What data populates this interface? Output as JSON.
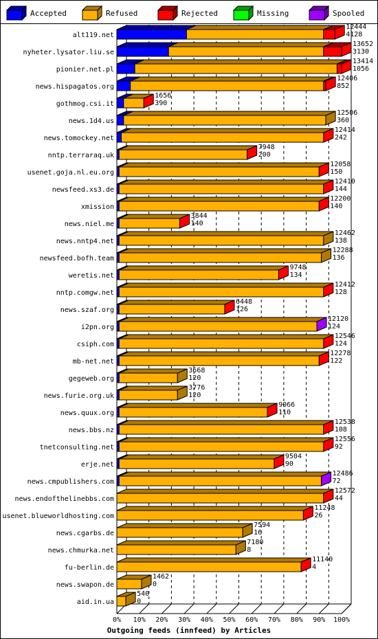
{
  "legend": {
    "placement": "top",
    "items": [
      {
        "name": "Accepted",
        "color": "#0000ff",
        "shade": "#0000a0"
      },
      {
        "name": "Refused",
        "color": "#ffb000",
        "shade": "#b07a00"
      },
      {
        "name": "Rejected",
        "color": "#ff0000",
        "shade": "#a00000"
      },
      {
        "name": "Missing",
        "color": "#00ff00",
        "shade": "#00a000"
      },
      {
        "name": "Spooled",
        "color": "#a000ff",
        "shade": "#6a00a8"
      }
    ]
  },
  "chart_data": {
    "type": "bar",
    "orientation": "horizontal",
    "stacked": true,
    "title": "Outgoing feeds (innfeed) by Articles",
    "xlim": [
      0,
      100
    ],
    "x_unit": "%",
    "x_ticks": [
      "0%",
      "10%",
      "20%",
      "30%",
      "40%",
      "50%",
      "60%",
      "70%",
      "80%",
      "90%",
      "100%"
    ],
    "grid": true,
    "series_order": [
      "Accepted",
      "Refused",
      "Rejected",
      "Missing",
      "Spooled"
    ],
    "categories": [
      {
        "name": "alt119.net",
        "total": "12444",
        "accepted": "4128",
        "pct": [
          31,
          61,
          5,
          0,
          0
        ]
      },
      {
        "name": "nyheter.lysator.liu.se",
        "total": "13652",
        "accepted": "3130",
        "pct": [
          23,
          69,
          8,
          0,
          0
        ]
      },
      {
        "name": "pionier.net.pl",
        "total": "13414",
        "accepted": "1056",
        "pct": [
          8,
          90,
          2,
          0,
          0
        ]
      },
      {
        "name": "news.hispagatos.org",
        "total": "12406",
        "accepted": "852",
        "pct": [
          6,
          86,
          1,
          0,
          0
        ]
      },
      {
        "name": "gothmog.csi.it",
        "total": "1656",
        "accepted": "390",
        "pct": [
          3,
          9,
          0,
          0,
          0
        ]
      },
      {
        "name": "news.1d4.us",
        "total": "12506",
        "accepted": "360",
        "pct": [
          3,
          90,
          0,
          0,
          0
        ]
      },
      {
        "name": "news.tomockey.net",
        "total": "12414",
        "accepted": "242",
        "pct": [
          2,
          90,
          0,
          0,
          0
        ]
      },
      {
        "name": "nntp.terraraq.uk",
        "total": "7948",
        "accepted": "200",
        "pct": [
          1,
          57,
          0,
          0,
          0
        ]
      },
      {
        "name": "usenet.goja.nl.eu.org",
        "total": "12058",
        "accepted": "150",
        "pct": [
          1,
          89,
          0,
          0,
          0
        ]
      },
      {
        "name": "newsfeed.xs3.de",
        "total": "12410",
        "accepted": "144",
        "pct": [
          1,
          91,
          0,
          0,
          0
        ]
      },
      {
        "name": "xmission",
        "total": "12200",
        "accepted": "140",
        "pct": [
          1,
          89,
          0,
          0,
          0
        ]
      },
      {
        "name": "news.niel.me",
        "total": "3844",
        "accepted": "140",
        "pct": [
          1,
          27,
          0,
          0,
          0
        ]
      },
      {
        "name": "news.nntp4.net",
        "total": "12462",
        "accepted": "138",
        "pct": [
          1,
          91,
          0,
          0,
          0
        ]
      },
      {
        "name": "newsfeed.bofh.team",
        "total": "12288",
        "accepted": "136",
        "pct": [
          1,
          90,
          0,
          0,
          0
        ]
      },
      {
        "name": "weretis.net",
        "total": "9748",
        "accepted": "134",
        "pct": [
          1,
          71,
          0,
          0,
          0
        ]
      },
      {
        "name": "nntp.comgw.net",
        "total": "12412",
        "accepted": "128",
        "pct": [
          1,
          91,
          0,
          0,
          0
        ]
      },
      {
        "name": "news.szaf.org",
        "total": "6448",
        "accepted": "126",
        "pct": [
          1,
          47,
          0,
          0,
          0
        ]
      },
      {
        "name": "i2pn.org",
        "total": "12120",
        "accepted": "124",
        "pct": [
          1,
          88,
          0,
          0,
          0
        ]
      },
      {
        "name": "csiph.com",
        "total": "12546",
        "accepted": "124",
        "pct": [
          1,
          91,
          0,
          0,
          0
        ]
      },
      {
        "name": "mb-net.net",
        "total": "12278",
        "accepted": "122",
        "pct": [
          1,
          89,
          0,
          0,
          0
        ]
      },
      {
        "name": "gegeweb.org",
        "total": "3668",
        "accepted": "120",
        "pct": [
          1,
          26,
          0,
          0,
          0
        ]
      },
      {
        "name": "news.furie.org.uk",
        "total": "3776",
        "accepted": "120",
        "pct": [
          1,
          26,
          0,
          0,
          0
        ]
      },
      {
        "name": "news.quux.org",
        "total": "9066",
        "accepted": "110",
        "pct": [
          1,
          66,
          0,
          0,
          0
        ]
      },
      {
        "name": "news.bbs.nz",
        "total": "12538",
        "accepted": "108",
        "pct": [
          1,
          91,
          0,
          0,
          0
        ]
      },
      {
        "name": "tnetconsulting.net",
        "total": "12556",
        "accepted": "92",
        "pct": [
          1,
          91,
          0,
          0,
          0
        ]
      },
      {
        "name": "erje.net",
        "total": "9504",
        "accepted": "90",
        "pct": [
          1,
          69,
          0,
          0,
          0
        ]
      },
      {
        "name": "news.cmpublishers.com",
        "total": "12486",
        "accepted": "72",
        "pct": [
          1,
          90,
          0,
          0,
          0
        ]
      },
      {
        "name": "news.endofthelinebbs.com",
        "total": "12572",
        "accepted": "44",
        "pct": [
          0,
          92,
          0,
          0,
          0
        ]
      },
      {
        "name": "usenet.blueworldhosting.com",
        "total": "11248",
        "accepted": "26",
        "pct": [
          0,
          83,
          0,
          0,
          0
        ]
      },
      {
        "name": "news.cgarbs.de",
        "total": "7594",
        "accepted": "16",
        "pct": [
          0,
          56,
          0,
          0,
          0
        ]
      },
      {
        "name": "news.chmurka.net",
        "total": "7180",
        "accepted": "8",
        "pct": [
          0,
          53,
          0,
          0,
          0
        ]
      },
      {
        "name": "fu-berlin.de",
        "total": "11140",
        "accepted": "4",
        "pct": [
          0,
          82,
          0,
          0,
          0
        ]
      },
      {
        "name": "news.swapon.de",
        "total": "1462",
        "accepted": "0",
        "pct": [
          0,
          11,
          0,
          0,
          0
        ]
      },
      {
        "name": "aid.in.ua",
        "total": "540",
        "accepted": "0",
        "pct": [
          0,
          4,
          0,
          0,
          0
        ]
      }
    ],
    "cap_series": [
      "Rejected",
      "Rejected",
      "Rejected",
      "Rejected",
      "Rejected",
      "Refused",
      "Rejected",
      "Rejected",
      "Rejected",
      "Rejected",
      "Rejected",
      "Rejected",
      "Refused",
      "Refused",
      "Rejected",
      "Rejected",
      "Rejected",
      "Spooled",
      "Rejected",
      "Rejected",
      "Refused",
      "Refused",
      "Rejected",
      "Rejected",
      "Rejected",
      "Rejected",
      "Spooled",
      "Rejected",
      "Rejected",
      "Refused",
      "Refused",
      "Rejected",
      "Refused",
      "Refused"
    ]
  }
}
